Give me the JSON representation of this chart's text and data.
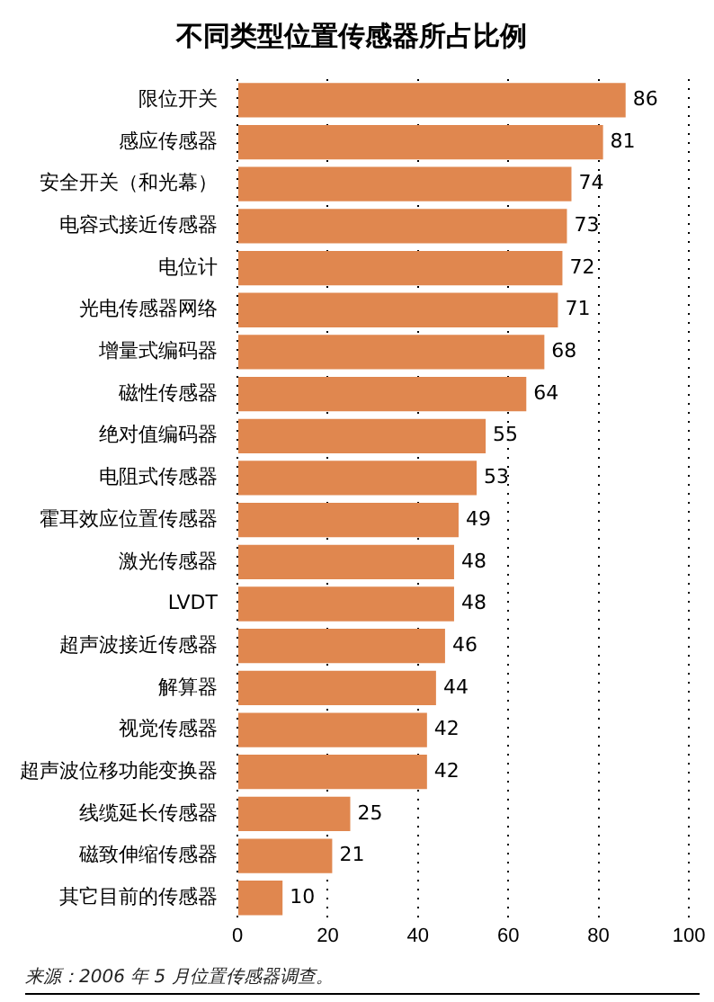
{
  "chart_data": {
    "type": "bar",
    "orientation": "horizontal",
    "title": "不同类型位置传感器所占比例",
    "categories": [
      "限位开关",
      "感应传感器",
      "安全开关（和光幕）",
      "电容式接近传感器",
      "电位计",
      "光电传感器网络",
      "增量式编码器",
      "磁性传感器",
      "绝对值编码器",
      "电阻式传感器",
      "霍耳效应位置传感器",
      "激光传感器",
      "LVDT",
      "超声波接近传感器",
      "解算器",
      "视觉传感器",
      "超声波位移功能变换器",
      "线缆延长传感器",
      "磁致伸缩传感器",
      "其它目前的传感器"
    ],
    "values": [
      86,
      81,
      74,
      73,
      72,
      71,
      68,
      64,
      55,
      53,
      49,
      48,
      48,
      46,
      44,
      42,
      42,
      25,
      21,
      10
    ],
    "color": "#e0874f",
    "xlim": [
      0,
      100
    ],
    "xticks": [
      0,
      20,
      40,
      60,
      80,
      100
    ],
    "grid": "x",
    "data_labels": true,
    "annotations": [
      "来源：2006 年 5 月位置传感器调查。"
    ]
  }
}
